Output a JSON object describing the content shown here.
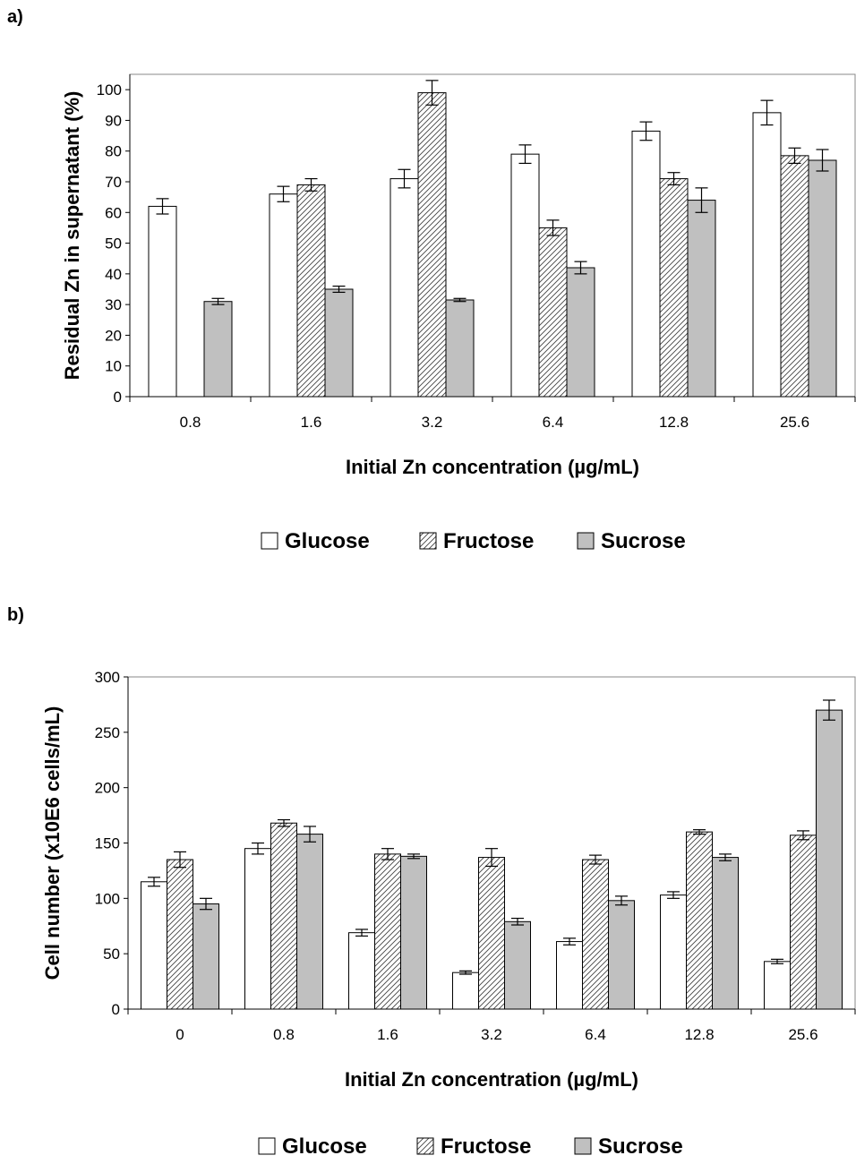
{
  "chart_data": [
    {
      "panel_label": "a)",
      "type": "bar",
      "categories": [
        "0.8",
        "1.6",
        "3.2",
        "6.4",
        "12.8",
        "25.6"
      ],
      "series": [
        {
          "name": "Glucose",
          "values": [
            62,
            66,
            71,
            79,
            86.5,
            92.5
          ],
          "errors": [
            2.5,
            2.5,
            3,
            3,
            3,
            4
          ]
        },
        {
          "name": "Fructose",
          "values": [
            0,
            69,
            99,
            55,
            71,
            78.5
          ],
          "errors": [
            0,
            2,
            4,
            2.5,
            2,
            2.5
          ]
        },
        {
          "name": "Sucrose",
          "values": [
            31,
            35,
            31.5,
            42,
            64,
            77
          ],
          "errors": [
            1,
            1,
            0.5,
            2,
            4,
            3.5
          ]
        }
      ],
      "xlabel": "Initial Zn concentration (µg/mL)",
      "ylabel": "Residual Zn in supernatant (%)",
      "ylim": [
        0,
        100
      ],
      "yticks": [
        "0",
        "10",
        "20",
        "30",
        "40",
        "50",
        "60",
        "70",
        "80",
        "90",
        "100"
      ],
      "ymax_display": 105,
      "legend_position": "bottom"
    },
    {
      "panel_label": "b)",
      "type": "bar",
      "categories": [
        "0",
        "0.8",
        "1.6",
        "3.2",
        "6.4",
        "12.8",
        "25.6"
      ],
      "series": [
        {
          "name": "Glucose",
          "values": [
            115,
            145,
            69,
            33,
            61,
            103,
            43
          ],
          "errors": [
            4,
            5,
            3,
            1.5,
            3,
            3,
            2
          ]
        },
        {
          "name": "Fructose",
          "values": [
            135,
            168,
            140,
            137,
            135,
            160,
            157
          ],
          "errors": [
            7,
            3,
            5,
            8,
            4,
            2,
            4
          ]
        },
        {
          "name": "Sucrose",
          "values": [
            95,
            158,
            138,
            79,
            98,
            137,
            270
          ],
          "errors": [
            5,
            7,
            2,
            3,
            4,
            3,
            9
          ]
        }
      ],
      "xlabel": "Initial Zn concentration (µg/mL)",
      "ylabel": "Cell number (x10E6 cells/mL)",
      "ylim": [
        0,
        300
      ],
      "yticks": [
        "0",
        "50",
        "100",
        "150",
        "200",
        "250",
        "300"
      ],
      "ymax_display": 300,
      "legend_position": "bottom"
    }
  ]
}
